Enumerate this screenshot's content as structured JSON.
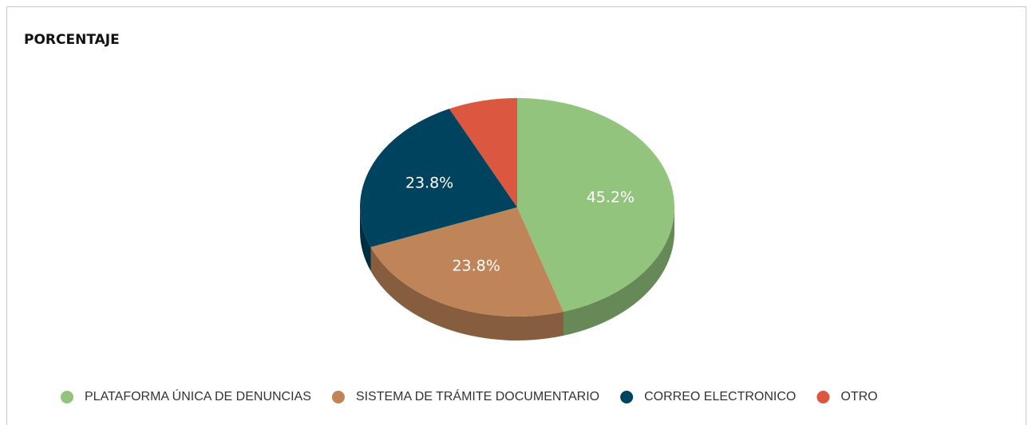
{
  "chart_data": {
    "type": "pie",
    "title": "PORCENTAJE",
    "categories": [
      "PLATAFORMA ÚNICA DE DENUNCIAS",
      "SISTEMA DE TRÁMITE DOCUMENTARIO",
      "CORREO ELECTRONICO",
      "OTRO"
    ],
    "values": [
      45.2,
      23.8,
      23.8,
      7.1
    ],
    "value_labels": [
      "45.2%",
      "23.8%",
      "23.8%",
      null
    ],
    "colors": [
      "#93c47d",
      "#bf8558",
      "#00435e",
      "#dc573f"
    ],
    "legend": "bottom"
  }
}
